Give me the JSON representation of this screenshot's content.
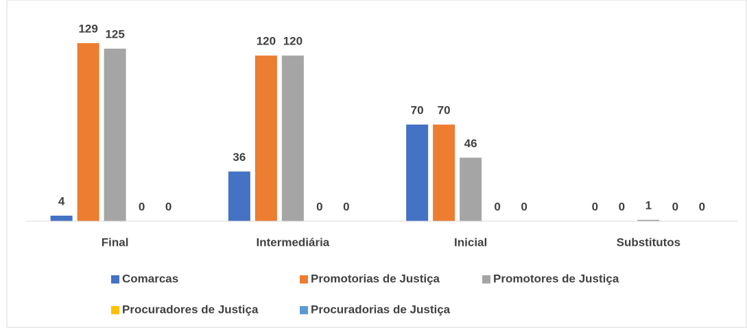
{
  "chart_data": {
    "type": "bar",
    "categories": [
      "Final",
      "Intermediária",
      "Inicial",
      "Substitutos"
    ],
    "series": [
      {
        "name": "Comarcas",
        "color": "#4472c4",
        "values": [
          4,
          36,
          70,
          0
        ]
      },
      {
        "name": "Promotorias de Justiça",
        "color": "#ed7d31",
        "values": [
          129,
          120,
          70,
          0
        ]
      },
      {
        "name": "Promotores de Justiça",
        "color": "#a5a5a5",
        "values": [
          125,
          120,
          46,
          1
        ]
      },
      {
        "name": "Procuradores de Justiça",
        "color": "#ffc000",
        "values": [
          0,
          0,
          0,
          0
        ]
      },
      {
        "name": "Procuradorias de Justiça",
        "color": "#5b9bd5",
        "values": [
          0,
          0,
          0,
          0
        ]
      }
    ],
    "grid": false
  }
}
